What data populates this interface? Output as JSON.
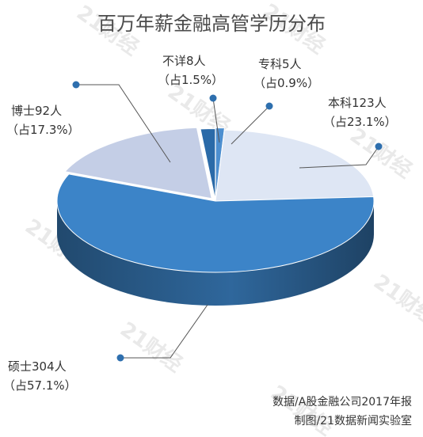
{
  "chart_data": {
    "type": "pie",
    "style": "3d-exploded",
    "title": "百万年薪金融高管学历分布",
    "categories": [
      "博士",
      "硕士",
      "本科",
      "专科",
      "不详"
    ],
    "counts": [
      92,
      304,
      123,
      5,
      8
    ],
    "unit": "人",
    "values": [
      17.3,
      57.1,
      23.1,
      0.9,
      1.5
    ],
    "value_unit": "%",
    "labels": [
      {
        "line1": "博士92人",
        "line2": "（占17.3%）"
      },
      {
        "line1": "硕士304人",
        "line2": "（占57.1%）"
      },
      {
        "line1": "本科123人",
        "line2": "（占23.1%）"
      },
      {
        "line1": "专科5人",
        "line2": "（占0.9%）"
      },
      {
        "line1": "不详8人",
        "line2": "（占1.5%）"
      }
    ],
    "colors": [
      "#c4cee6",
      "#3c84c8",
      "#dee6f4",
      "#4d8fd0",
      "#2a6aa8"
    ],
    "source_line1": "数据/A股金融公司2017年报",
    "source_line2": "制图/21数据新闻实验室"
  },
  "watermark": "21财经",
  "accent_color": "#2e6fae"
}
